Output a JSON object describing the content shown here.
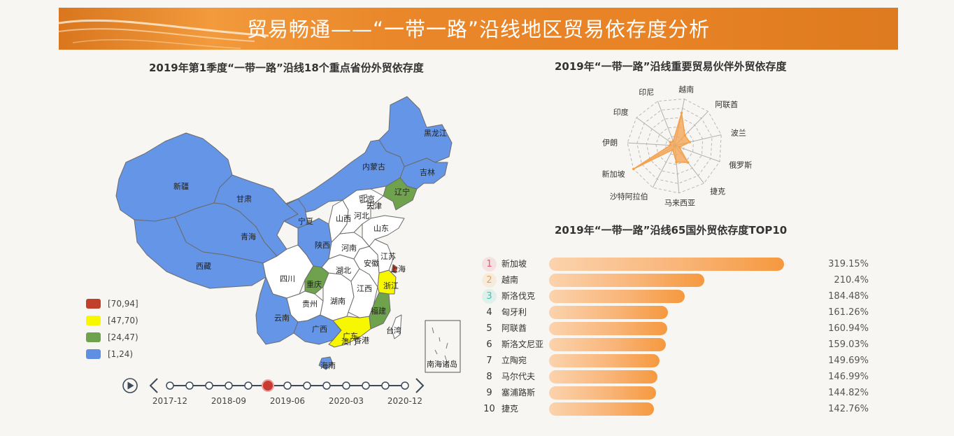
{
  "header": {
    "title": "贸易畅通——“一带一路”沿线地区贸易依存度分析"
  },
  "map": {
    "title": "2019年第1季度“一带一路”沿线18个重点省份外贸依存度",
    "legend": [
      {
        "label": "[70,94]",
        "color": "#c0402c"
      },
      {
        "label": "[47,70)",
        "color": "#f7f700"
      },
      {
        "label": "[24,47)",
        "color": "#6ea24c"
      },
      {
        "label": "[1,24)",
        "color": "#5f8fe3"
      }
    ],
    "regions": {
      "heilongjiang": "黑龙江",
      "jilin": "吉林",
      "liaoning": "辽宁",
      "neimenggu": "内蒙古",
      "xinjiang": "新疆",
      "gansu": "甘肃",
      "ningxia": "宁夏",
      "qinghai": "青海",
      "xizang": "西藏",
      "shaanxi": "陕西",
      "sichuan": "四川",
      "chongqing": "重庆",
      "yunnan": "云南",
      "guizhou": "贵州",
      "guangxi": "广西",
      "guangdong": "广东",
      "hainan": "海南",
      "fujian": "福建",
      "zhejiang": "浙江",
      "shanghai": "上海",
      "jiangsu": "江苏",
      "anhui": "安徽",
      "jiangxi": "江西",
      "hunan": "湖南",
      "hubei": "湖北",
      "henan": "河南",
      "shandong": "山东",
      "hebei": "河北",
      "shanxi": "山西",
      "beijing": "北京",
      "tianjin": "天津",
      "taiwan": "台湾",
      "hongkong": "香港",
      "macau": "澳门",
      "nanhai": "南海诸岛"
    }
  },
  "timeline": {
    "labels": [
      "2017-12",
      "2018-09",
      "2019-06",
      "2020-03",
      "2020-12"
    ],
    "steps": 13,
    "current_index": 5,
    "play_icon": "play-icon",
    "prev_icon": "chevron-left-icon",
    "next_icon": "chevron-right-icon"
  },
  "radar": {
    "title": "2019年“一带一路”沿线重要贸易伙伴外贸依存度",
    "indicators": [
      "越南",
      "阿联酋",
      "波兰",
      "俄罗斯",
      "捷克",
      "马来西亚",
      "沙特阿拉伯",
      "新加坡",
      "伊朗",
      "印度",
      "印尼"
    ],
    "values": [
      0.7,
      0.3,
      0.32,
      0.1,
      0.45,
      0.35,
      0.1,
      1.0,
      0.1,
      0.12,
      0.1
    ],
    "color": "#f5a14c"
  },
  "bar_ranking": {
    "title": "2019年“一带一路”沿线65国外贸依存度TOP10",
    "items": [
      {
        "rank": "1",
        "country": "新加坡",
        "value": "319.15%",
        "pct": 319.15
      },
      {
        "rank": "2",
        "country": "越南",
        "value": "210.4%",
        "pct": 210.4
      },
      {
        "rank": "3",
        "country": "斯洛伐克",
        "value": "184.48%",
        "pct": 184.48
      },
      {
        "rank": "4",
        "country": "匈牙利",
        "value": "161.26%",
        "pct": 161.26
      },
      {
        "rank": "5",
        "country": "阿联酋",
        "value": "160.94%",
        "pct": 160.94
      },
      {
        "rank": "6",
        "country": "斯洛文尼亚",
        "value": "159.03%",
        "pct": 159.03
      },
      {
        "rank": "7",
        "country": "立陶宛",
        "value": "149.69%",
        "pct": 149.69
      },
      {
        "rank": "8",
        "country": "马尔代夫",
        "value": "146.99%",
        "pct": 146.99
      },
      {
        "rank": "9",
        "country": "塞浦路斯",
        "value": "144.82%",
        "pct": 144.82
      },
      {
        "rank": "10",
        "country": "捷克",
        "value": "142.76%",
        "pct": 142.76
      }
    ],
    "rank_colors": [
      "#e8577a",
      "#f0a24a",
      "#3cc7b4"
    ]
  },
  "chart_data": [
    {
      "type": "bar",
      "title": "2019年“一带一路”沿线65国外贸依存度TOP10",
      "categories": [
        "新加坡",
        "越南",
        "斯洛伐克",
        "匈牙利",
        "阿联酋",
        "斯洛文尼亚",
        "立陶宛",
        "马尔代夫",
        "塞浦路斯",
        "捷克"
      ],
      "values": [
        319.15,
        210.4,
        184.48,
        161.26,
        160.94,
        159.03,
        149.69,
        146.99,
        144.82,
        142.76
      ]
    },
    {
      "type": "radar",
      "title": "2019年“一带一路”沿线重要贸易伙伴外贸依存度",
      "categories": [
        "越南",
        "阿联酋",
        "波兰",
        "俄罗斯",
        "捷克",
        "马来西亚",
        "沙特阿拉伯",
        "新加坡",
        "伊朗",
        "印度",
        "印尼"
      ],
      "values": [
        0.7,
        0.3,
        0.32,
        0.1,
        0.45,
        0.35,
        0.1,
        1.0,
        0.1,
        0.12,
        0.1
      ]
    }
  ]
}
